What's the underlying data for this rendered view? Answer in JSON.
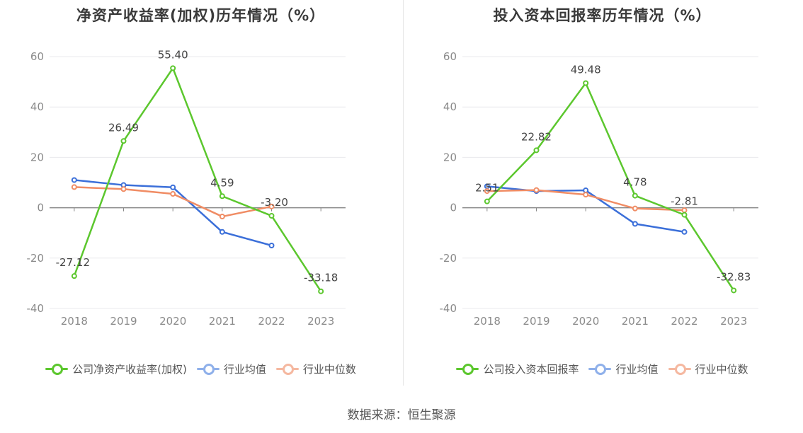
{
  "source": "数据来源：恒生聚源",
  "colors": {
    "company": "#5cc72e",
    "avg": "#3b6fd9",
    "median": "#f08c64",
    "axis": "#888888",
    "grid": "#e8e8ec"
  },
  "chart_data": [
    {
      "id": "left",
      "type": "line",
      "title": "净资产收益率(加权)历年情况（%）",
      "categories": [
        "2018",
        "2019",
        "2020",
        "2021",
        "2022",
        "2023"
      ],
      "ylim": [
        -40,
        60
      ],
      "yticks": [
        60,
        40,
        20,
        0,
        -20,
        -40
      ],
      "grid": true,
      "legend_position": "bottom",
      "series": [
        {
          "key": "company",
          "name": "公司净资产收益率(加权)",
          "values": [
            -27.12,
            26.49,
            55.4,
            4.59,
            -3.2,
            -33.18
          ],
          "labels": [
            "-27.12",
            "26.49",
            "55.40",
            "4.59",
            "-3.20",
            "-33.18"
          ]
        },
        {
          "key": "avg",
          "name": "行业均值",
          "values": [
            11.0,
            9.0,
            8.1,
            -9.6,
            -15.0,
            null
          ]
        },
        {
          "key": "median",
          "name": "行业中位数",
          "values": [
            8.2,
            7.4,
            5.5,
            -3.5,
            0.5,
            null
          ]
        }
      ]
    },
    {
      "id": "right",
      "type": "line",
      "title": "投入资本回报率历年情况（%）",
      "categories": [
        "2018",
        "2019",
        "2020",
        "2021",
        "2022",
        "2023"
      ],
      "ylim": [
        -40,
        60
      ],
      "yticks": [
        60,
        40,
        20,
        0,
        -20,
        -40
      ],
      "grid": true,
      "legend_position": "bottom",
      "series": [
        {
          "key": "company",
          "name": "公司投入资本回报率",
          "values": [
            2.51,
            22.82,
            49.48,
            4.78,
            -2.81,
            -32.83
          ],
          "labels": [
            "2.51",
            "22.82",
            "49.48",
            "4.78",
            "-2.81",
            "-32.83"
          ]
        },
        {
          "key": "avg",
          "name": "行业均值",
          "values": [
            8.5,
            6.6,
            6.9,
            -6.4,
            -9.6,
            null
          ]
        },
        {
          "key": "median",
          "name": "行业中位数",
          "values": [
            6.6,
            7.0,
            5.2,
            -0.3,
            -1.0,
            null
          ]
        }
      ]
    }
  ]
}
